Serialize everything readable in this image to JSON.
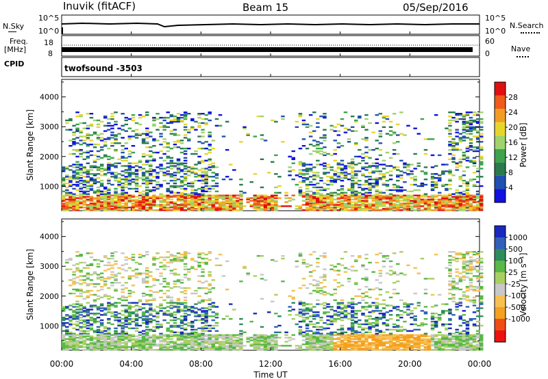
{
  "header": {
    "station": "Inuvik (fitACF)",
    "beam": "Beam 15",
    "date": "05/Sep/2016"
  },
  "strip_labels": {
    "nsky": "N.Sky",
    "nsky_ticks": [
      "10^5",
      "10^0"
    ],
    "nsearch": "N.Search",
    "nsearch_ticks": [
      "10^5",
      "10^0"
    ],
    "freq": "Freq.",
    "freq_unit": "[MHz]",
    "freq_ticks": [
      "18",
      "8"
    ],
    "nave": "Nave",
    "nave_ticks": [
      "60",
      "0"
    ],
    "cpid": "CPID",
    "cpid_value": "twofsound -3503"
  },
  "colors": {
    "power": [
      "#1010e0",
      "#2050b0",
      "#2a7a4c",
      "#3da34d",
      "#9fd36c",
      "#e8d52c",
      "#f39c23",
      "#f05a1c",
      "#e01010"
    ],
    "velocity": [
      "#ee1111",
      "#f04c15",
      "#f4a020",
      "#f7c050",
      "#c8c8c8",
      "#a8d060",
      "#58b848",
      "#2d8c5c",
      "#3060b8",
      "#1a28c0"
    ]
  },
  "chart_data": [
    {
      "type": "heatmap",
      "panel": "power",
      "xlabel": "",
      "ylabel": "Slant Range [km]",
      "x_ticks": [
        "00:00",
        "04:00",
        "08:00",
        "12:00",
        "16:00",
        "20:00",
        "00:00"
      ],
      "x_range_hours": [
        0,
        24
      ],
      "y_range_km": [
        180,
        4590
      ],
      "y_ticks": [
        1000,
        2000,
        3000,
        4000
      ],
      "colorbar_label": "Power [dB]",
      "colorbar_ticks": [
        "4",
        "8",
        "12",
        "16",
        "20",
        "24",
        "28"
      ],
      "colorbar_range": [
        0,
        30
      ],
      "grid": false
    },
    {
      "type": "heatmap",
      "panel": "velocity",
      "xlabel": "Time UT",
      "ylabel": "Slant Range [km]",
      "x_ticks": [
        "00:00",
        "04:00",
        "08:00",
        "12:00",
        "16:00",
        "20:00",
        "00:00"
      ],
      "x_range_hours": [
        0,
        24
      ],
      "y_range_km": [
        180,
        4590
      ],
      "y_ticks": [
        1000,
        2000,
        3000,
        4000
      ],
      "colorbar_label": "Velocity [m s⁻¹]",
      "colorbar_ticks": [
        "1000",
        "500",
        "100",
        "25",
        "-25",
        "-100",
        "-500",
        "-1000"
      ],
      "colorbar_range": [
        -1000,
        1000
      ],
      "grid": false
    }
  ]
}
